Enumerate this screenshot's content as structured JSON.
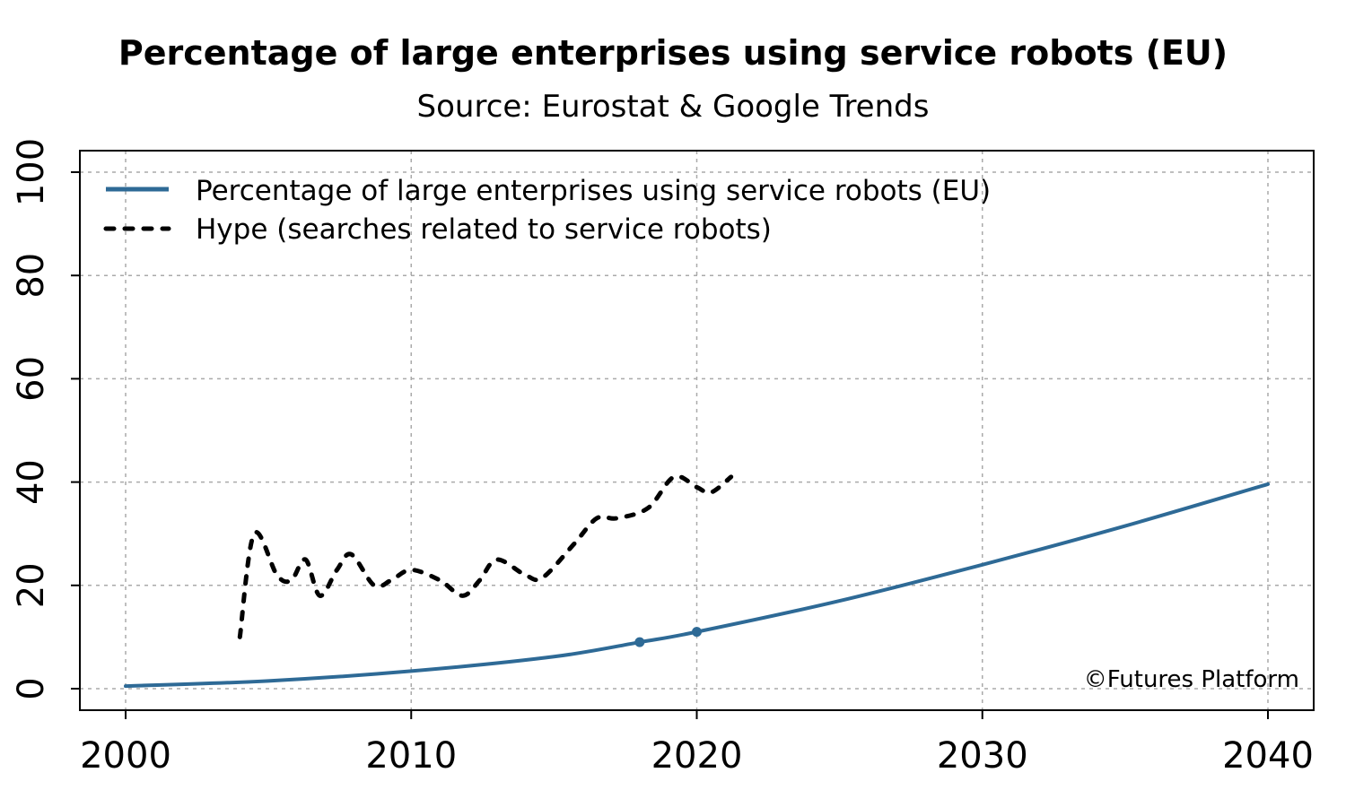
{
  "chart_data": {
    "type": "line",
    "title": "Percentage of large enterprises using service robots (EU)",
    "subtitle": "Source: Eurostat & Google Trends",
    "xlim": [
      2000,
      2040
    ],
    "ylim": [
      0,
      100
    ],
    "x_ticks": [
      "2000",
      "2010",
      "2020",
      "2030",
      "2040"
    ],
    "y_ticks": [
      "0",
      "20",
      "40",
      "60",
      "80",
      "100"
    ],
    "grid": true,
    "legend_position": "top-left",
    "credit": "©Futures Platform",
    "series": [
      {
        "name": "Percentage of large enterprises using service robots (EU)",
        "color": "#2e6a96",
        "style": "solid",
        "x": [
          2000,
          2005,
          2010,
          2015,
          2018,
          2020,
          2025,
          2030,
          2035,
          2040
        ],
        "y": [
          0.5,
          1.5,
          3.4,
          6.2,
          9,
          11,
          17,
          24,
          31.5,
          39.6
        ],
        "markers": [
          {
            "x": 2018,
            "y": 9
          },
          {
            "x": 2020,
            "y": 11
          }
        ]
      },
      {
        "name": "Hype (searches related to service robots)",
        "color": "#000000",
        "style": "dotted",
        "x": [
          2004.0,
          2004.5,
          2005.3,
          2005.8,
          2006.3,
          2006.8,
          2007.4,
          2007.9,
          2008.7,
          2009.3,
          2010.0,
          2011.0,
          2011.8,
          2012.4,
          2013.0,
          2014.0,
          2014.6,
          2015.7,
          2016.5,
          2017.2,
          2018.3,
          2019.2,
          2020.0,
          2020.5,
          2021.2
        ],
        "y": [
          10,
          30,
          22,
          21,
          25,
          18,
          23,
          26,
          20,
          21,
          23,
          21,
          18,
          21,
          25,
          22,
          21.5,
          28,
          33,
          33,
          35,
          41,
          39,
          38,
          41
        ]
      }
    ]
  }
}
